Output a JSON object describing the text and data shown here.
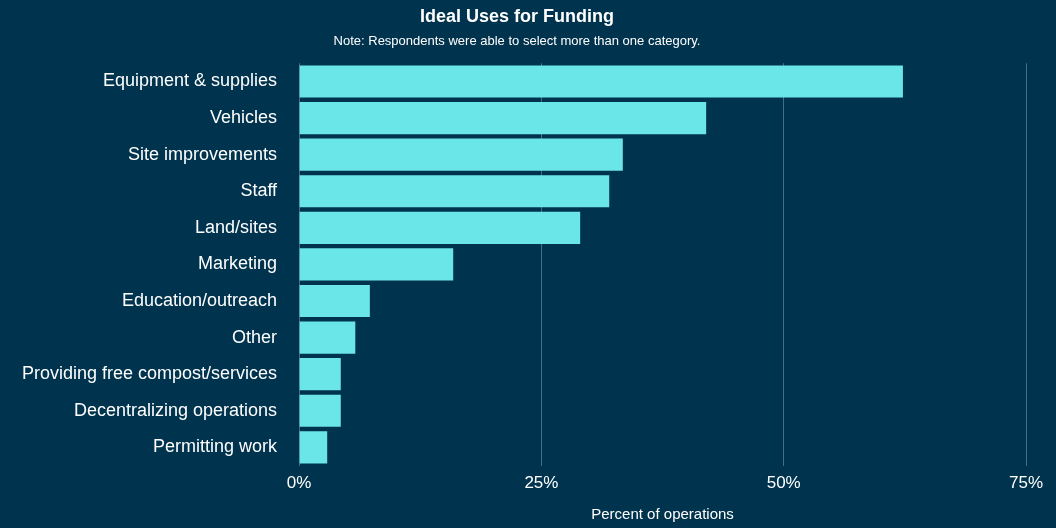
{
  "chart_data": {
    "type": "bar",
    "orientation": "horizontal",
    "title": "Ideal Uses for Funding",
    "subtitle": "Note: Respondents were able to select more than one category.",
    "xlabel": "Percent of operations",
    "categories": [
      "Equipment & supplies",
      "Vehicles",
      "Site improvements",
      "Staff",
      "Land/sites",
      "Marketing",
      "Education/outreach",
      "Other",
      "Providing free compost/services",
      "Decentralizing operations",
      "Permitting work"
    ],
    "values": [
      62.3,
      42.0,
      33.4,
      32.0,
      29.0,
      15.9,
      7.3,
      5.8,
      4.3,
      4.3,
      2.9
    ],
    "color": "#6be6e8",
    "xlim": [
      0,
      75
    ],
    "xticks": [
      {
        "value": 0,
        "label": "0%"
      },
      {
        "value": 25,
        "label": "25%"
      },
      {
        "value": 50,
        "label": "50%"
      },
      {
        "value": 75,
        "label": "75%"
      }
    ],
    "grid": "x"
  }
}
